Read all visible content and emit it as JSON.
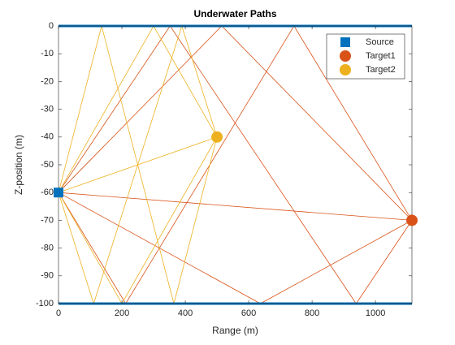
{
  "chart_data": {
    "type": "raypaths",
    "title": "Underwater Paths",
    "xlabel": "Range (m)",
    "ylabel": "Z-position (m)",
    "xlim": [
      0,
      1115
    ],
    "ylim": [
      -100,
      0
    ],
    "xticks": [
      0,
      200,
      400,
      600,
      800,
      1000
    ],
    "yticks": [
      0,
      -10,
      -20,
      -30,
      -40,
      -50,
      -60,
      -70,
      -80,
      -90,
      -100
    ],
    "boundaries": [
      {
        "color": "#0072BD",
        "x": [
          0,
          1115
        ],
        "values": [
          0,
          0
        ]
      },
      {
        "color": "#0072BD",
        "x": [
          0,
          1115
        ],
        "values": [
          -100,
          -100
        ]
      }
    ],
    "paths": [
      {
        "color": "#D95319",
        "x": [
          0,
          1115
        ],
        "values": [
          -60,
          -70
        ]
      },
      {
        "color": "#D95319",
        "x": [
          0,
          515,
          1115
        ],
        "values": [
          -60,
          0,
          -70
        ]
      },
      {
        "color": "#D95319",
        "x": [
          0,
          637,
          1115
        ],
        "values": [
          -60,
          -100,
          -70
        ]
      },
      {
        "color": "#D95319",
        "x": [
          0,
          352,
          939,
          1115
        ],
        "values": [
          -60,
          0,
          -100,
          -70
        ]
      },
      {
        "color": "#D95319",
        "x": [
          0,
          212,
          743,
          1115
        ],
        "values": [
          -60,
          -100,
          0,
          -70
        ]
      },
      {
        "color": "#EDB120",
        "x": [
          0,
          500
        ],
        "values": [
          -60,
          -40
        ]
      },
      {
        "color": "#EDB120",
        "x": [
          0,
          300,
          500
        ],
        "values": [
          -60,
          0,
          -40
        ]
      },
      {
        "color": "#EDB120",
        "x": [
          0,
          200,
          500
        ],
        "values": [
          -60,
          -100,
          -40
        ]
      },
      {
        "color": "#EDB120",
        "x": [
          0,
          136,
          364,
          500
        ],
        "values": [
          -60,
          0,
          -100,
          -40
        ]
      },
      {
        "color": "#EDB120",
        "x": [
          0,
          111,
          389,
          500
        ],
        "values": [
          -60,
          -100,
          0,
          -40
        ]
      }
    ],
    "series": [
      {
        "name": "Source",
        "color": "#0072BD",
        "marker": "square",
        "x": [
          0
        ],
        "values": [
          -60
        ]
      },
      {
        "name": "Target1",
        "color": "#D95319",
        "marker": "circle",
        "x": [
          1115
        ],
        "values": [
          -70
        ]
      },
      {
        "name": "Target2",
        "color": "#EDB120",
        "marker": "circle",
        "x": [
          500
        ],
        "values": [
          -40
        ]
      }
    ]
  }
}
